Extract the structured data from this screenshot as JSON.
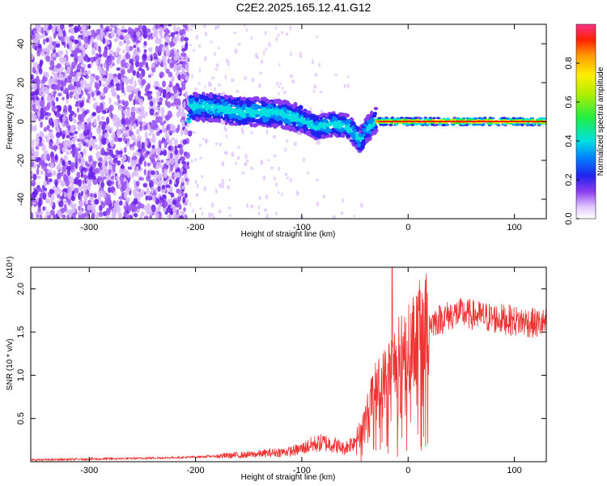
{
  "title": "C2E2.2025.165.12.41.G12",
  "chart_data": [
    {
      "type": "heatmap",
      "xlabel": "Height of straight line (km)",
      "ylabel": "Frequency (Hz)",
      "xlim": [
        -355,
        130
      ],
      "ylim": [
        -50,
        50
      ],
      "x_ticks": [
        -300,
        -200,
        -100,
        0,
        100
      ],
      "y_ticks": [
        -40,
        -20,
        0,
        20,
        40
      ],
      "colorbar": {
        "label": "Normalized spectral amplitude",
        "range": [
          0,
          1
        ],
        "ticks": [
          0.0,
          0.2,
          0.4,
          0.6,
          0.8
        ]
      },
      "trace": [
        {
          "x": -205,
          "y": 8
        },
        {
          "x": -180,
          "y": 7
        },
        {
          "x": -160,
          "y": 5
        },
        {
          "x": -140,
          "y": 5
        },
        {
          "x": -120,
          "y": 4
        },
        {
          "x": -100,
          "y": 1
        },
        {
          "x": -85,
          "y": -3
        },
        {
          "x": -70,
          "y": -1
        },
        {
          "x": -55,
          "y": -3
        },
        {
          "x": -45,
          "y": -10
        },
        {
          "x": -40,
          "y": -5
        },
        {
          "x": -35,
          "y": -2
        },
        {
          "x": -30,
          "y": 1
        },
        {
          "x": 0,
          "y": 0
        },
        {
          "x": 50,
          "y": 0
        },
        {
          "x": 130,
          "y": 0
        }
      ]
    },
    {
      "type": "line",
      "xlabel": "Height of straight line (km)",
      "ylabel": "SNR (10 * v/v)",
      "y_multiplier": "(x10⁴)",
      "xlim": [
        -355,
        130
      ],
      "ylim": [
        0,
        2.25
      ],
      "x_ticks": [
        -300,
        -200,
        -100,
        0,
        100
      ],
      "y_ticks": [
        0.5,
        1.0,
        1.5,
        2.0
      ],
      "color": "#ee3333",
      "series": [
        {
          "x": [
            -355,
            -300,
            -250,
            -210,
            -190,
            -170,
            -150,
            -130,
            -110,
            -100,
            -90,
            -80,
            -70,
            -60,
            -50,
            -45,
            -40,
            -35,
            -30,
            -25,
            -20,
            -15,
            -10,
            -5,
            0,
            5,
            10,
            15,
            20,
            30,
            40,
            50,
            60,
            70,
            80,
            90,
            100,
            110,
            120,
            130
          ],
          "y": [
            0.02,
            0.03,
            0.04,
            0.05,
            0.06,
            0.07,
            0.08,
            0.1,
            0.12,
            0.15,
            0.2,
            0.22,
            0.2,
            0.15,
            0.25,
            0.35,
            0.5,
            0.7,
            0.85,
            0.9,
            1.0,
            1.1,
            1.2,
            1.25,
            1.3,
            1.4,
            1.5,
            1.55,
            1.6,
            1.65,
            1.7,
            1.72,
            1.7,
            1.68,
            1.66,
            1.65,
            1.63,
            1.62,
            1.6,
            1.6
          ]
        }
      ]
    }
  ]
}
